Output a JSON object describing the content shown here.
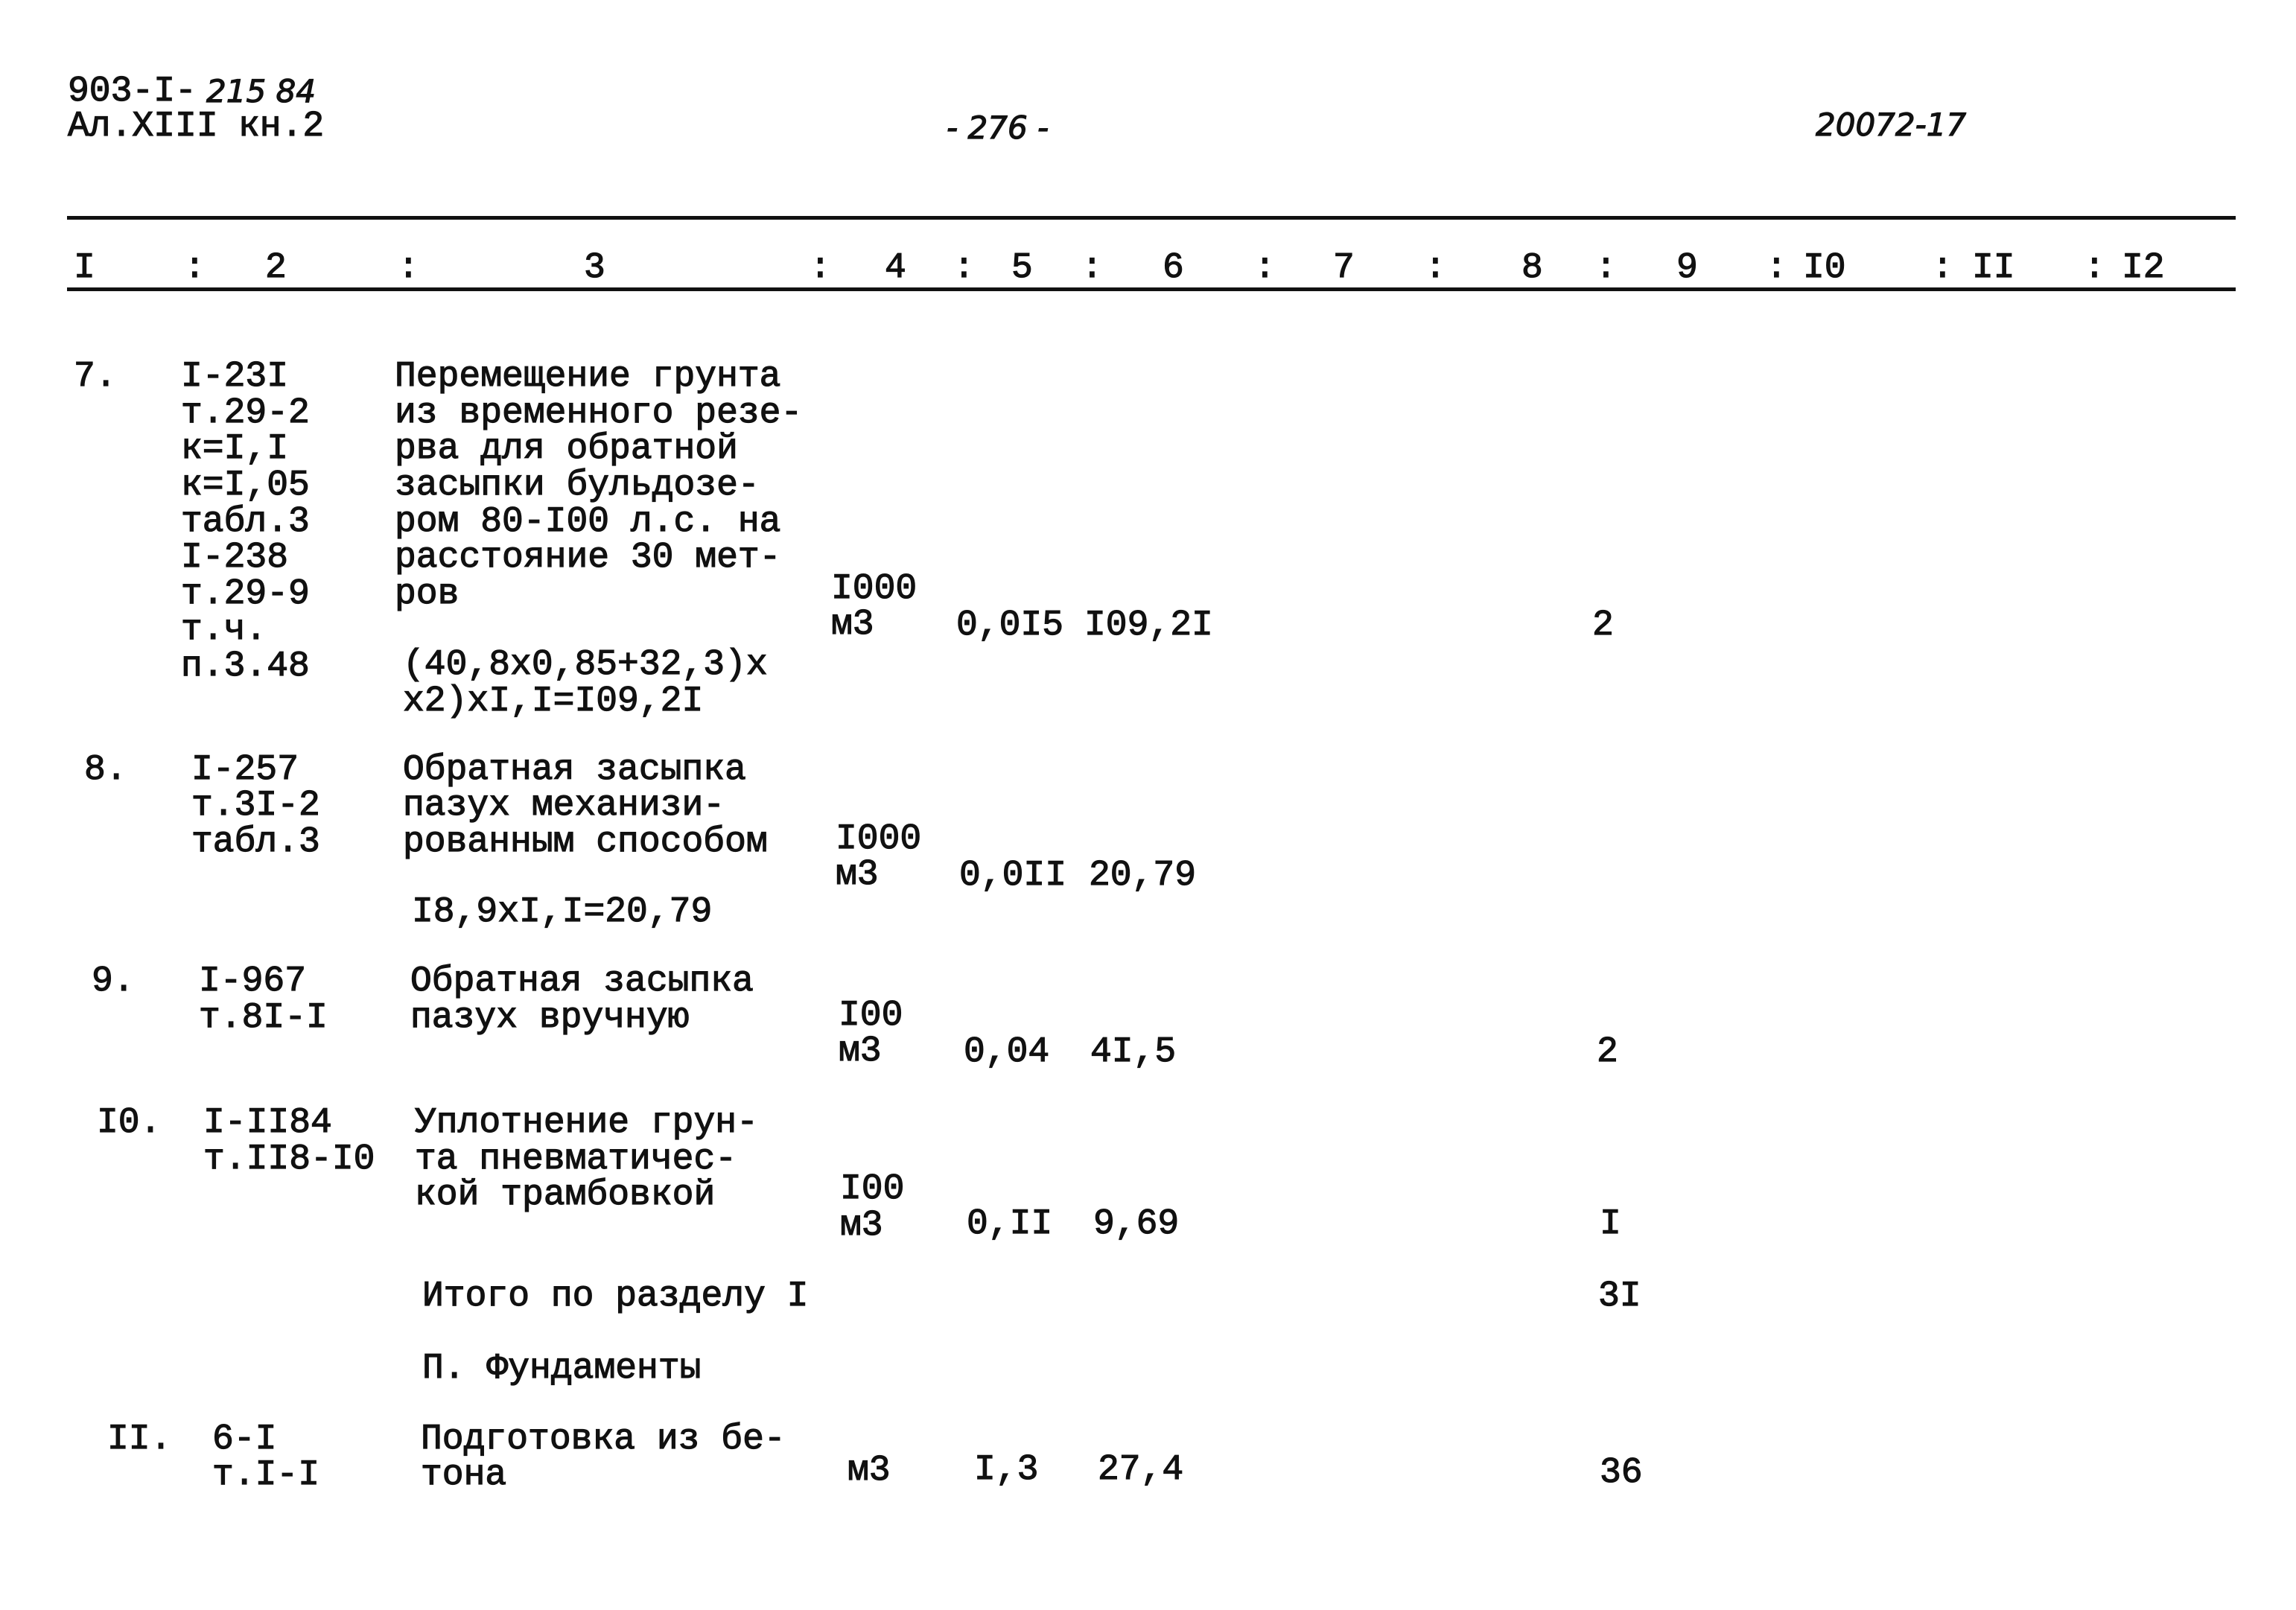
{
  "header": {
    "doc_code_typed": "903-I-",
    "doc_code_hand": "215 84",
    "album": "Ал.XIII",
    "book": "кн.2",
    "page_number": "- 276 -",
    "stamp_number": "20072-17"
  },
  "columns": [
    "I",
    "2",
    "3",
    "4",
    "5",
    "6",
    "7",
    "8",
    "9",
    "I0",
    "II",
    "I2"
  ],
  "rows": [
    {
      "num": "7.",
      "codes": [
        "I-23I",
        "т.29-2",
        "к=I,I",
        "к=I,05",
        "табл.3",
        "I-238",
        "т.29-9",
        "т.ч.",
        "п.3.48"
      ],
      "description": [
        "Перемещение грунта",
        "из временного резе-",
        "рва для обратной",
        "засыпки бульдозе-",
        "ром 80-I00 л.с. на",
        "расстояние 30 мет-",
        "ров"
      ],
      "formula": [
        "(40,8x0,85+32,3)x",
        "x2)xI,I=I09,2I"
      ],
      "unit": [
        "I000",
        "м3"
      ],
      "col5": "0,0I5",
      "col6": "I09,2I",
      "col9": "2"
    },
    {
      "num": "8.",
      "codes": [
        "I-257",
        "т.3I-2",
        "табл.3"
      ],
      "description": [
        "Обратная засыпка",
        "пазух механизи-",
        "рованным способом"
      ],
      "formula": [
        "I8,9xI,I=20,79"
      ],
      "unit": [
        "I000",
        "м3"
      ],
      "col5": "0,0II",
      "col6": "20,79",
      "col9": ""
    },
    {
      "num": "9.",
      "codes": [
        "I-967",
        "т.8I-I"
      ],
      "description": [
        "Обратная засыпка",
        "пазух вручную"
      ],
      "formula": [],
      "unit": [
        "I00",
        "м3"
      ],
      "col5": "0,04",
      "col6": "4I,5",
      "col9": "2"
    },
    {
      "num": "I0.",
      "codes": [
        "I-II84",
        "т.II8-I0"
      ],
      "description": [
        "Уплотнение грун-",
        "та пневматичес-",
        "кой трамбовкой"
      ],
      "formula": [],
      "unit": [
        "I00",
        "м3"
      ],
      "col5": "0,II",
      "col6": "9,69",
      "col9": "I"
    },
    {
      "num": "II.",
      "codes": [
        "6-I",
        "т.I-I"
      ],
      "description": [
        "Подготовка из бе-",
        "тона"
      ],
      "formula": [],
      "unit": [
        "",
        "м3"
      ],
      "col5": "I,3",
      "col6": "27,4",
      "col9": "36"
    }
  ],
  "subtotal": {
    "label": "Итого по разделу I",
    "col9": "3I"
  },
  "section": {
    "label": "П. Фундаменты"
  }
}
